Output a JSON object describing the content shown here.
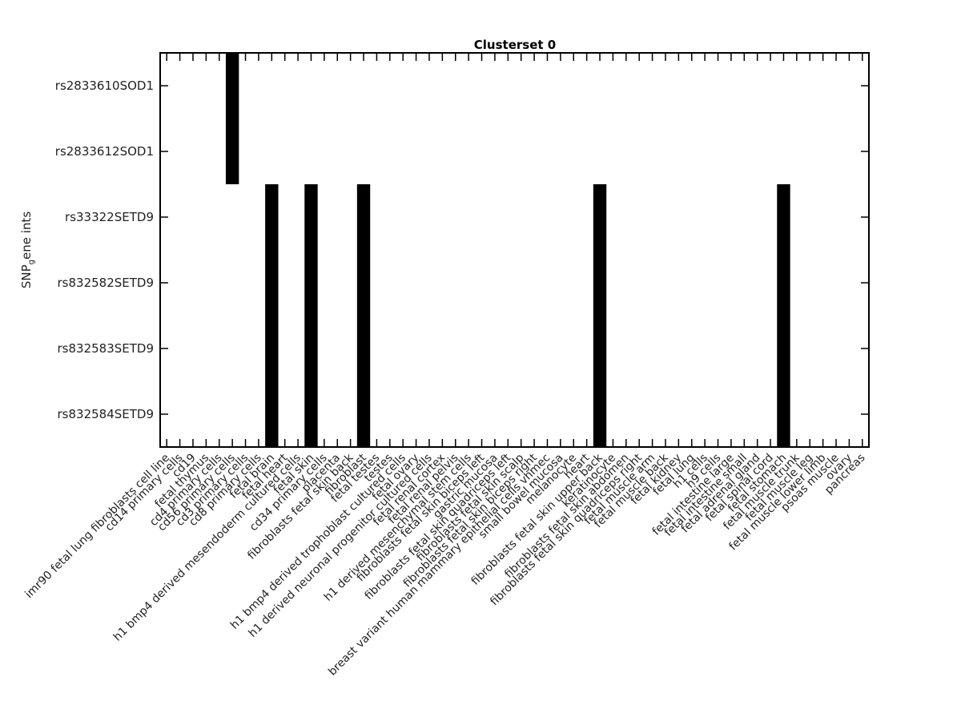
{
  "chart_data": {
    "type": "heatmap",
    "title": "Clusterset 0",
    "ylabel": "SNP",
    "ylabel_subscript": "g",
    "ylabel_rest": "ene ints",
    "xlabel": "",
    "colors": {
      "on": "#000000",
      "off": "#ffffff",
      "frame": "#000000"
    },
    "rows": [
      "rs2833610SOD1",
      "rs2833612SOD1",
      "rs33322SETD9",
      "rs832582SETD9",
      "rs832583SETD9",
      "rs832584SETD9"
    ],
    "columns": [
      "imr90 fetal lung fibroblasts cell line",
      "cd14 primary cells",
      "cd19",
      "fetal thymus",
      "cd4 primary cells",
      "cd56 primary cells",
      "cd3 primary cells",
      "cd8 primary cells",
      "fetal brain",
      "fetal heart",
      "h1 bmp4 derived mesendoderm cultured cells",
      "fetal skin",
      "cd34 primary cells",
      "placenta",
      "fibroblasts fetal skin back",
      "fibroblast",
      "fetal testes",
      "testes",
      "h1 bmp4 derived trophoblast cultured cells",
      "fetal ovary",
      "h1 derived neuronal progenitor cultured cells",
      "fetal renal cortex",
      "fetal renal pelvis",
      "h1 derived mesenchymal stem cells",
      "fibroblasts fetal skin biceps left",
      "gastric mucosa",
      "fibroblasts fetal skin quadriceps left",
      "fibroblasts fetal skin scalp",
      "fibroblasts fetal skin biceps right",
      "breast variant human mammary epithelial cells vhmec",
      "small bowel mucosa",
      "melanocyte",
      "heart",
      "fibroblasts fetal skin upper back",
      "keratinocyte",
      "fibroblasts fetal skin abdomen",
      "fibroblasts fetal skin quadriceps right",
      "fetal muscle arm",
      "fetal muscle back",
      "fetal kidney",
      "fetal lung",
      "h1 cells",
      "h9 cells",
      "fetal intestine large",
      "fetal intestine small",
      "fetal adrenal gland",
      "fetal spinal cord",
      "fetal stomach",
      "fetal muscle trunk",
      "fetal muscle leg",
      "fetal muscle lower limb",
      "psoas muscle",
      "ovary",
      "pancreas"
    ],
    "active_cells": [
      {
        "column": 5,
        "row_from": 0,
        "row_to": 1
      },
      {
        "column": 8,
        "row_from": 2,
        "row_to": 5
      },
      {
        "column": 11,
        "row_from": 2,
        "row_to": 5
      },
      {
        "column": 15,
        "row_from": 2,
        "row_to": 5
      },
      {
        "column": 33,
        "row_from": 2,
        "row_to": 5
      },
      {
        "column": 47,
        "row_from": 2,
        "row_to": 5
      }
    ],
    "legend": "none",
    "grid": false
  }
}
